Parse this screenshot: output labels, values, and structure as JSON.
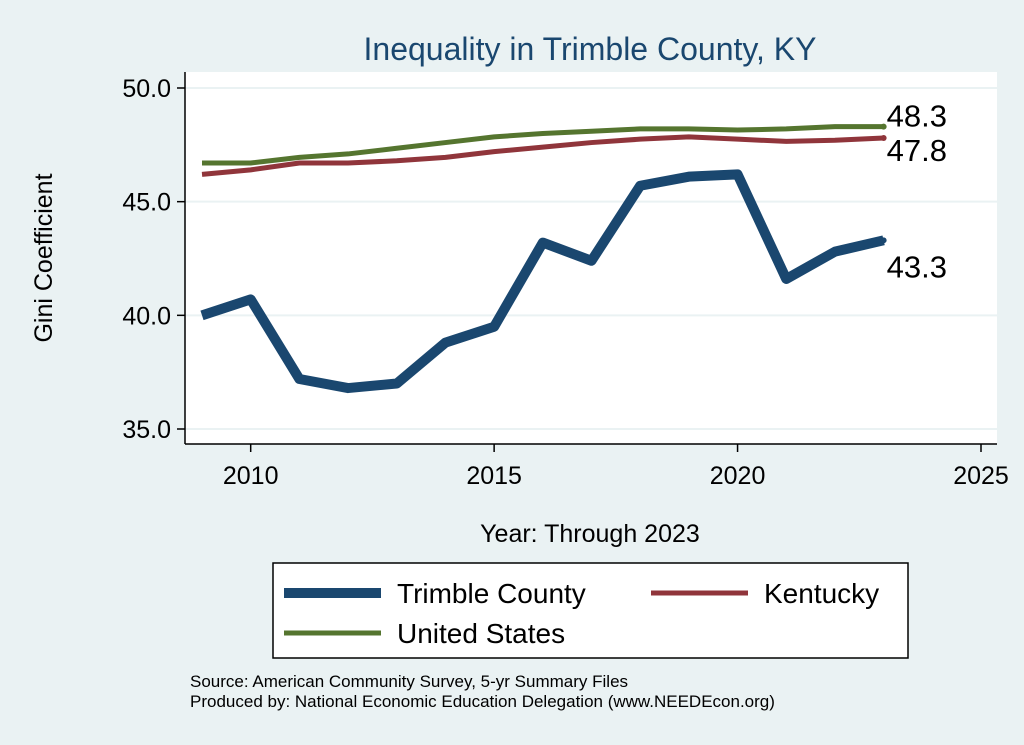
{
  "chart_data": {
    "type": "line",
    "title": "Inequality in Trimble County, KY",
    "xlabel": "Year: Through 2023",
    "ylabel": "Gini Coefficient",
    "xlim": [
      2009,
      2025
    ],
    "ylim": [
      35,
      50.7
    ],
    "x_ticks": [
      2010,
      2015,
      2020,
      2025
    ],
    "y_ticks": [
      35,
      40,
      45,
      50
    ],
    "y_tick_labels": [
      "35.0",
      "40.0",
      "45.0",
      "50.0"
    ],
    "grid": true,
    "x": [
      2009,
      2010,
      2011,
      2012,
      2013,
      2014,
      2015,
      2016,
      2017,
      2018,
      2019,
      2020,
      2021,
      2022,
      2023
    ],
    "series": [
      {
        "name": "Trimble County",
        "color": "#1a476f",
        "values": [
          40.0,
          40.7,
          37.2,
          36.8,
          37.0,
          38.8,
          39.5,
          43.2,
          42.4,
          45.7,
          46.1,
          46.2,
          41.6,
          42.8,
          43.3
        ],
        "end_label": "43.3"
      },
      {
        "name": "Kentucky",
        "color": "#90353b",
        "values": [
          46.2,
          46.4,
          46.7,
          46.7,
          46.8,
          46.95,
          47.2,
          47.4,
          47.6,
          47.75,
          47.85,
          47.75,
          47.65,
          47.7,
          47.8
        ],
        "end_label": "47.8"
      },
      {
        "name": "United States",
        "color": "#55752f",
        "values": [
          46.7,
          46.7,
          46.95,
          47.1,
          47.35,
          47.6,
          47.85,
          48.0,
          48.1,
          48.2,
          48.2,
          48.15,
          48.2,
          48.3,
          48.3
        ],
        "end_label": "48.3"
      }
    ],
    "legend": [
      "Trimble County",
      "Kentucky",
      "United States"
    ],
    "legend_position": "bottom"
  },
  "footer": {
    "source": "Source: American Community Survey, 5-yr Summary Files",
    "produced_by": "Produced by: National Economic Education Delegation (www.NEEDEcon.org)"
  }
}
